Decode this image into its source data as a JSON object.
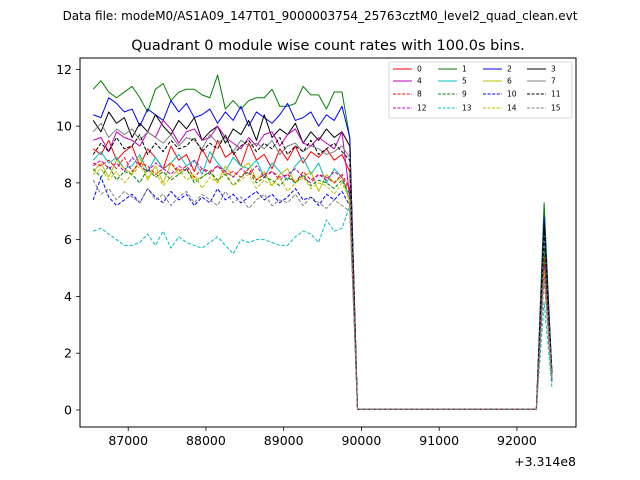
{
  "chart_data": {
    "type": "line",
    "suptitle": "Data file: modeM0/AS1A09_147T01_9000003754_25763cztM0_level2_quad_clean.evt",
    "title": "Quadrant 0 module wise count rates with 100.0s bins.",
    "xlabel": "",
    "ylabel": "",
    "x_offset_label": "+3.314e8",
    "xlim": [
      86380,
      92760
    ],
    "ylim": [
      -0.6,
      12.4
    ],
    "xticks": [
      87000,
      88000,
      89000,
      90000,
      91000,
      92000
    ],
    "yticks": [
      0,
      2,
      4,
      6,
      8,
      10,
      12
    ],
    "grid": false,
    "legend": {
      "position": "top-right",
      "columns": 4
    },
    "x_note": "x values are seconds minus 3.314e8, sampled every 100 s",
    "x": [
      86550,
      86650,
      86750,
      86850,
      86950,
      87050,
      87150,
      87250,
      87350,
      87450,
      87550,
      87650,
      87750,
      87850,
      87950,
      88050,
      88150,
      88250,
      88350,
      88450,
      88550,
      88650,
      88750,
      88850,
      88950,
      89050,
      89150,
      89250,
      89350,
      89450,
      89550,
      89650,
      89750,
      89850,
      89950,
      90050,
      90150,
      90250,
      90350,
      90450,
      90550,
      90650,
      90750,
      90850,
      90950,
      91050,
      91150,
      91250,
      91350,
      91450,
      91550,
      91650,
      91750,
      91850,
      91950,
      92050,
      92150,
      92250,
      92350,
      92450
    ],
    "series": [
      {
        "name": "0",
        "color": "#ff0000",
        "dash": false,
        "values": [
          9.2,
          9.0,
          9.5,
          8.8,
          9.1,
          9.3,
          8.6,
          9.2,
          8.9,
          8.5,
          9.3,
          8.8,
          9.0,
          8.4,
          9.2,
          8.7,
          9.5,
          8.9,
          9.1,
          8.6,
          9.4,
          8.8,
          9.0,
          8.5,
          9.2,
          8.8,
          9.3,
          8.7,
          9.1,
          8.9,
          9.2,
          8.8,
          9.0,
          8.4,
          0.02,
          0.02,
          0.02,
          0.02,
          0.02,
          0.02,
          0.02,
          0.02,
          0.02,
          0.02,
          0.02,
          0.02,
          0.02,
          0.02,
          0.02,
          0.02,
          0.02,
          0.02,
          0.02,
          0.02,
          0.02,
          0.02,
          0.02,
          0.02,
          5.8,
          1.3
        ]
      },
      {
        "name": "1",
        "color": "#008000",
        "dash": false,
        "values": [
          11.3,
          11.6,
          11.2,
          11.0,
          11.2,
          11.4,
          11.0,
          10.5,
          11.3,
          11.5,
          10.9,
          11.2,
          11.3,
          11.3,
          11.1,
          11.0,
          11.8,
          10.6,
          10.9,
          10.6,
          10.9,
          11.0,
          11.0,
          11.3,
          10.7,
          10.7,
          10.8,
          11.4,
          11.1,
          11.1,
          10.6,
          11.2,
          11.2,
          9.6,
          0.02,
          0.02,
          0.02,
          0.02,
          0.02,
          0.02,
          0.02,
          0.02,
          0.02,
          0.02,
          0.02,
          0.02,
          0.02,
          0.02,
          0.02,
          0.02,
          0.02,
          0.02,
          0.02,
          0.02,
          0.02,
          0.02,
          0.02,
          0.02,
          7.3,
          1.2
        ]
      },
      {
        "name": "2",
        "color": "#0000ff",
        "dash": false,
        "values": [
          10.4,
          10.3,
          11.0,
          10.8,
          10.5,
          10.6,
          10.0,
          10.6,
          10.4,
          10.2,
          10.9,
          10.5,
          10.8,
          10.3,
          10.4,
          10.6,
          10.1,
          10.5,
          10.2,
          10.7,
          10.0,
          10.5,
          10.3,
          10.1,
          10.4,
          10.8,
          10.2,
          10.3,
          10.5,
          10.0,
          10.4,
          10.2,
          10.7,
          9.6,
          0.02,
          0.02,
          0.02,
          0.02,
          0.02,
          0.02,
          0.02,
          0.02,
          0.02,
          0.02,
          0.02,
          0.02,
          0.02,
          0.02,
          0.02,
          0.02,
          0.02,
          0.02,
          0.02,
          0.02,
          0.02,
          0.02,
          0.02,
          0.02,
          6.8,
          1.4
        ]
      },
      {
        "name": "3",
        "color": "#000000",
        "dash": false,
        "values": [
          10.2,
          9.8,
          10.5,
          10.1,
          10.3,
          9.6,
          10.1,
          9.8,
          10.4,
          10.0,
          9.7,
          10.2,
          9.9,
          10.3,
          9.5,
          9.8,
          10.0,
          9.4,
          9.9,
          9.7,
          10.2,
          9.5,
          10.4,
          9.6,
          9.9,
          9.7,
          10.1,
          9.4,
          9.8,
          9.5,
          9.9,
          9.6,
          9.8,
          9.3,
          0.02,
          0.02,
          0.02,
          0.02,
          0.02,
          0.02,
          0.02,
          0.02,
          0.02,
          0.02,
          0.02,
          0.02,
          0.02,
          0.02,
          0.02,
          0.02,
          0.02,
          0.02,
          0.02,
          0.02,
          0.02,
          0.02,
          0.02,
          0.02,
          6.5,
          1.3
        ]
      },
      {
        "name": "4",
        "color": "#bf00bf",
        "dash": false,
        "values": [
          9.5,
          9.6,
          9.1,
          9.8,
          9.6,
          9.5,
          9.3,
          9.8,
          9.6,
          10.2,
          9.9,
          9.4,
          9.8,
          9.9,
          9.5,
          9.6,
          10.0,
          9.6,
          9.4,
          9.2,
          9.6,
          9.3,
          9.7,
          9.8,
          9.3,
          9.7,
          9.9,
          9.4,
          9.3,
          9.6,
          9.4,
          9.2,
          9.8,
          7.5,
          0.02,
          0.02,
          0.02,
          0.02,
          0.02,
          0.02,
          0.02,
          0.02,
          0.02,
          0.02,
          0.02,
          0.02,
          0.02,
          0.02,
          0.02,
          0.02,
          0.02,
          0.02,
          0.02,
          0.02,
          0.02,
          0.02,
          0.02,
          0.02,
          6.0,
          1.1
        ]
      },
      {
        "name": "5",
        "color": "#00bfbf",
        "dash": false,
        "values": [
          8.8,
          9.1,
          8.7,
          8.9,
          8.5,
          8.6,
          9.0,
          8.4,
          8.9,
          8.5,
          8.7,
          9.0,
          8.6,
          8.8,
          8.3,
          9.1,
          8.7,
          8.4,
          8.9,
          8.6,
          8.5,
          8.8,
          8.2,
          8.7,
          8.4,
          8.1,
          8.6,
          8.9,
          8.3,
          8.7,
          8.0,
          8.5,
          8.2,
          7.4,
          0.02,
          0.02,
          0.02,
          0.02,
          0.02,
          0.02,
          0.02,
          0.02,
          0.02,
          0.02,
          0.02,
          0.02,
          0.02,
          0.02,
          0.02,
          0.02,
          0.02,
          0.02,
          0.02,
          0.02,
          0.02,
          0.02,
          0.02,
          0.02,
          6.2,
          1.0
        ]
      },
      {
        "name": "6",
        "color": "#bfbf00",
        "dash": false,
        "values": [
          8.4,
          8.7,
          8.2,
          8.8,
          8.5,
          8.3,
          8.9,
          8.1,
          8.6,
          8.0,
          8.7,
          8.3,
          8.5,
          8.1,
          8.2,
          8.4,
          8.0,
          8.6,
          8.2,
          8.5,
          8.7,
          8.1,
          8.4,
          7.9,
          8.3,
          8.5,
          8.0,
          8.2,
          8.4,
          7.7,
          8.3,
          8.0,
          8.2,
          7.3,
          0.02,
          0.02,
          0.02,
          0.02,
          0.02,
          0.02,
          0.02,
          0.02,
          0.02,
          0.02,
          0.02,
          0.02,
          0.02,
          0.02,
          0.02,
          0.02,
          0.02,
          0.02,
          0.02,
          0.02,
          0.02,
          0.02,
          0.02,
          0.02,
          5.5,
          1.2
        ]
      },
      {
        "name": "7",
        "color": "#808080",
        "dash": false,
        "values": [
          9.8,
          10.1,
          9.6,
          9.9,
          9.7,
          9.9,
          9.5,
          9.8,
          9.6,
          9.4,
          9.7,
          9.3,
          9.6,
          9.5,
          9.2,
          9.7,
          9.4,
          9.6,
          9.1,
          9.5,
          9.3,
          9.4,
          9.2,
          9.5,
          9.0,
          9.3,
          9.4,
          9.1,
          9.3,
          9.2,
          9.0,
          9.1,
          9.3,
          8.9,
          0.02,
          0.02,
          0.02,
          0.02,
          0.02,
          0.02,
          0.02,
          0.02,
          0.02,
          0.02,
          0.02,
          0.02,
          0.02,
          0.02,
          0.02,
          0.02,
          0.02,
          0.02,
          0.02,
          0.02,
          0.02,
          0.02,
          0.02,
          0.02,
          6.1,
          1.3
        ]
      },
      {
        "name": "8",
        "color": "#ff0000",
        "dash": true,
        "values": [
          8.7,
          8.6,
          8.8,
          8.5,
          8.9,
          8.4,
          8.7,
          8.6,
          8.3,
          8.5,
          8.7,
          8.4,
          8.6,
          8.2,
          8.5,
          8.4,
          8.6,
          8.3,
          8.4,
          8.2,
          8.5,
          8.1,
          8.3,
          8.4,
          8.2,
          8.3,
          8.0,
          8.4,
          8.1,
          8.3,
          8.2,
          8.0,
          8.3,
          7.8,
          0.02,
          0.02,
          0.02,
          0.02,
          0.02,
          0.02,
          0.02,
          0.02,
          0.02,
          0.02,
          0.02,
          0.02,
          0.02,
          0.02,
          0.02,
          0.02,
          0.02,
          0.02,
          0.02,
          0.02,
          0.02,
          0.02,
          0.02,
          0.02,
          5.4,
          1.2
        ]
      },
      {
        "name": "9",
        "color": "#008000",
        "dash": true,
        "values": [
          8.5,
          8.2,
          8.6,
          8.1,
          8.4,
          8.3,
          8.0,
          8.5,
          8.2,
          8.4,
          8.1,
          8.3,
          8.5,
          8.0,
          8.2,
          8.4,
          8.1,
          8.3,
          7.9,
          8.2,
          8.4,
          8.0,
          8.2,
          8.1,
          7.9,
          8.2,
          8.0,
          8.3,
          7.9,
          8.1,
          8.0,
          7.8,
          8.1,
          7.6,
          0.02,
          0.02,
          0.02,
          0.02,
          0.02,
          0.02,
          0.02,
          0.02,
          0.02,
          0.02,
          0.02,
          0.02,
          0.02,
          0.02,
          0.02,
          0.02,
          0.02,
          0.02,
          0.02,
          0.02,
          0.02,
          0.02,
          0.02,
          0.02,
          5.7,
          1.0
        ]
      },
      {
        "name": "10",
        "color": "#0000ff",
        "dash": true,
        "values": [
          7.4,
          8.2,
          7.5,
          7.2,
          7.4,
          7.6,
          7.3,
          7.8,
          7.5,
          7.3,
          7.7,
          7.4,
          7.6,
          7.2,
          7.5,
          7.3,
          7.8,
          7.4,
          7.6,
          7.3,
          7.5,
          7.7,
          7.4,
          7.6,
          7.3,
          7.5,
          7.8,
          7.4,
          7.5,
          7.2,
          7.6,
          7.4,
          7.7,
          7.2,
          0.02,
          0.02,
          0.02,
          0.02,
          0.02,
          0.02,
          0.02,
          0.02,
          0.02,
          0.02,
          0.02,
          0.02,
          0.02,
          0.02,
          0.02,
          0.02,
          0.02,
          0.02,
          0.02,
          0.02,
          0.02,
          0.02,
          0.02,
          0.02,
          4.8,
          1.0
        ]
      },
      {
        "name": "11",
        "color": "#000000",
        "dash": true,
        "values": [
          9.0,
          9.4,
          9.1,
          9.6,
          9.2,
          9.3,
          9.7,
          9.0,
          9.4,
          9.1,
          9.5,
          9.2,
          9.3,
          9.6,
          9.1,
          9.4,
          9.2,
          9.7,
          9.0,
          9.3,
          9.5,
          9.1,
          9.4,
          9.2,
          9.6,
          9.0,
          9.3,
          9.1,
          9.5,
          9.0,
          9.2,
          9.4,
          9.1,
          8.8,
          0.02,
          0.02,
          0.02,
          0.02,
          0.02,
          0.02,
          0.02,
          0.02,
          0.02,
          0.02,
          0.02,
          0.02,
          0.02,
          0.02,
          0.02,
          0.02,
          0.02,
          0.02,
          0.02,
          0.02,
          0.02,
          0.02,
          0.02,
          0.02,
          6.3,
          1.3
        ]
      },
      {
        "name": "12",
        "color": "#bf00bf",
        "dash": true,
        "values": [
          8.6,
          8.8,
          8.5,
          8.7,
          8.4,
          8.9,
          8.6,
          8.4,
          8.7,
          8.5,
          8.3,
          8.6,
          8.4,
          8.8,
          8.5,
          8.3,
          8.6,
          8.4,
          8.2,
          8.5,
          8.3,
          8.6,
          8.2,
          8.4,
          8.1,
          8.3,
          8.5,
          8.2,
          8.0,
          8.3,
          8.1,
          8.4,
          8.2,
          7.7,
          0.02,
          0.02,
          0.02,
          0.02,
          0.02,
          0.02,
          0.02,
          0.02,
          0.02,
          0.02,
          0.02,
          0.02,
          0.02,
          0.02,
          0.02,
          0.02,
          0.02,
          0.02,
          0.02,
          0.02,
          0.02,
          0.02,
          0.02,
          0.02,
          5.1,
          1.1
        ]
      },
      {
        "name": "13",
        "color": "#00bfbf",
        "dash": true,
        "values": [
          6.3,
          6.4,
          6.2,
          6.0,
          5.8,
          5.8,
          5.9,
          6.2,
          5.8,
          6.3,
          5.7,
          6.1,
          5.9,
          5.8,
          5.7,
          5.9,
          6.1,
          5.8,
          5.5,
          6.0,
          5.9,
          6.0,
          6.0,
          5.9,
          5.8,
          5.8,
          6.1,
          6.3,
          6.2,
          5.9,
          6.7,
          6.3,
          6.4,
          7.2,
          0.02,
          0.02,
          0.02,
          0.02,
          0.02,
          0.02,
          0.02,
          0.02,
          0.02,
          0.02,
          0.02,
          0.02,
          0.02,
          0.02,
          0.02,
          0.02,
          0.02,
          0.02,
          0.02,
          0.02,
          0.02,
          0.02,
          0.02,
          0.02,
          3.8,
          0.8
        ]
      },
      {
        "name": "14",
        "color": "#bfbf00",
        "dash": true,
        "values": [
          8.3,
          8.5,
          8.1,
          8.4,
          8.0,
          8.3,
          8.6,
          8.2,
          8.4,
          7.9,
          8.2,
          8.5,
          8.1,
          8.3,
          7.8,
          8.2,
          8.0,
          8.4,
          7.9,
          8.1,
          8.3,
          7.8,
          8.1,
          7.9,
          8.2,
          7.7,
          8.0,
          8.2,
          7.8,
          8.0,
          7.9,
          7.6,
          8.0,
          7.4,
          0.02,
          0.02,
          0.02,
          0.02,
          0.02,
          0.02,
          0.02,
          0.02,
          0.02,
          0.02,
          0.02,
          0.02,
          0.02,
          0.02,
          0.02,
          0.02,
          0.02,
          0.02,
          0.02,
          0.02,
          0.02,
          0.02,
          0.02,
          0.02,
          4.9,
          1.1
        ]
      },
      {
        "name": "15",
        "color": "#808080",
        "dash": true,
        "values": [
          8.1,
          7.6,
          7.8,
          7.4,
          7.7,
          7.5,
          7.3,
          7.8,
          7.4,
          7.6,
          7.2,
          7.5,
          7.7,
          7.3,
          7.6,
          7.4,
          7.2,
          7.7,
          7.3,
          7.5,
          7.1,
          7.4,
          7.6,
          7.2,
          7.4,
          7.3,
          7.6,
          7.2,
          7.5,
          7.3,
          7.1,
          7.4,
          7.2,
          7.0,
          0.02,
          0.02,
          0.02,
          0.02,
          0.02,
          0.02,
          0.02,
          0.02,
          0.02,
          0.02,
          0.02,
          0.02,
          0.02,
          0.02,
          0.02,
          0.02,
          0.02,
          0.02,
          0.02,
          0.02,
          0.02,
          0.02,
          0.02,
          0.02,
          4.6,
          1.0
        ]
      }
    ]
  }
}
